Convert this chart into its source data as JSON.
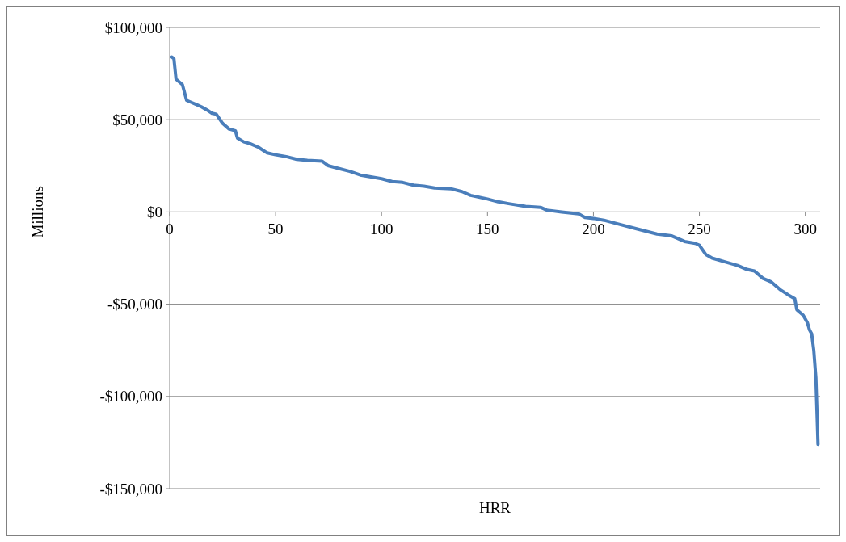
{
  "chart_data": {
    "type": "line",
    "xlabel": "HRR",
    "ylabel": "Millions",
    "xlim": [
      0,
      307
    ],
    "xticks": [
      0,
      50,
      100,
      150,
      200,
      250,
      300
    ],
    "ylim": [
      -150000,
      100000
    ],
    "yticks": [
      {
        "value": -150000,
        "label": "-$150,000"
      },
      {
        "value": -100000,
        "label": "-$100,000"
      },
      {
        "value": -50000,
        "label": "-$50,000"
      },
      {
        "value": 0,
        "label": "$0"
      },
      {
        "value": 50000,
        "label": "$50,000"
      },
      {
        "value": 100000,
        "label": "$100,000"
      }
    ],
    "grid": "y",
    "marker": "none",
    "line_style": "solid",
    "series": [
      {
        "color": "#4a7ebb",
        "x": [
          1,
          2,
          3,
          5,
          6,
          8,
          10,
          13,
          15,
          18,
          20,
          22,
          25,
          28,
          31,
          32,
          35,
          38,
          42,
          46,
          50,
          55,
          60,
          65,
          72,
          75,
          80,
          85,
          90,
          95,
          100,
          105,
          110,
          115,
          120,
          125,
          133,
          138,
          142,
          150,
          155,
          160,
          168,
          175,
          178,
          185,
          193,
          196,
          200,
          205,
          210,
          220,
          230,
          237,
          243,
          248,
          250,
          253,
          256,
          262,
          268,
          272,
          276,
          280,
          284,
          288,
          292,
          295,
          296,
          299,
          301,
          302,
          303,
          304,
          305,
          306
        ],
        "values": [
          84000,
          83000,
          72000,
          70000,
          69000,
          60500,
          59500,
          58000,
          57000,
          55000,
          53500,
          53000,
          48000,
          45000,
          44000,
          40000,
          38000,
          37000,
          35000,
          32000,
          31000,
          30000,
          28500,
          28000,
          27500,
          25000,
          23500,
          22000,
          20000,
          19000,
          18000,
          16500,
          16000,
          14500,
          14000,
          13000,
          12500,
          11000,
          9000,
          7000,
          5500,
          4500,
          3000,
          2500,
          1000,
          0,
          -1000,
          -3000,
          -3500,
          -4500,
          -6000,
          -9000,
          -12000,
          -13000,
          -16000,
          -17000,
          -18000,
          -23000,
          -25000,
          -27000,
          -29000,
          -31000,
          -32000,
          -36000,
          -38000,
          -42000,
          -45000,
          -47000,
          -53000,
          -56000,
          -60000,
          -64000,
          -66000,
          -75000,
          -90000,
          -126000
        ]
      }
    ]
  }
}
